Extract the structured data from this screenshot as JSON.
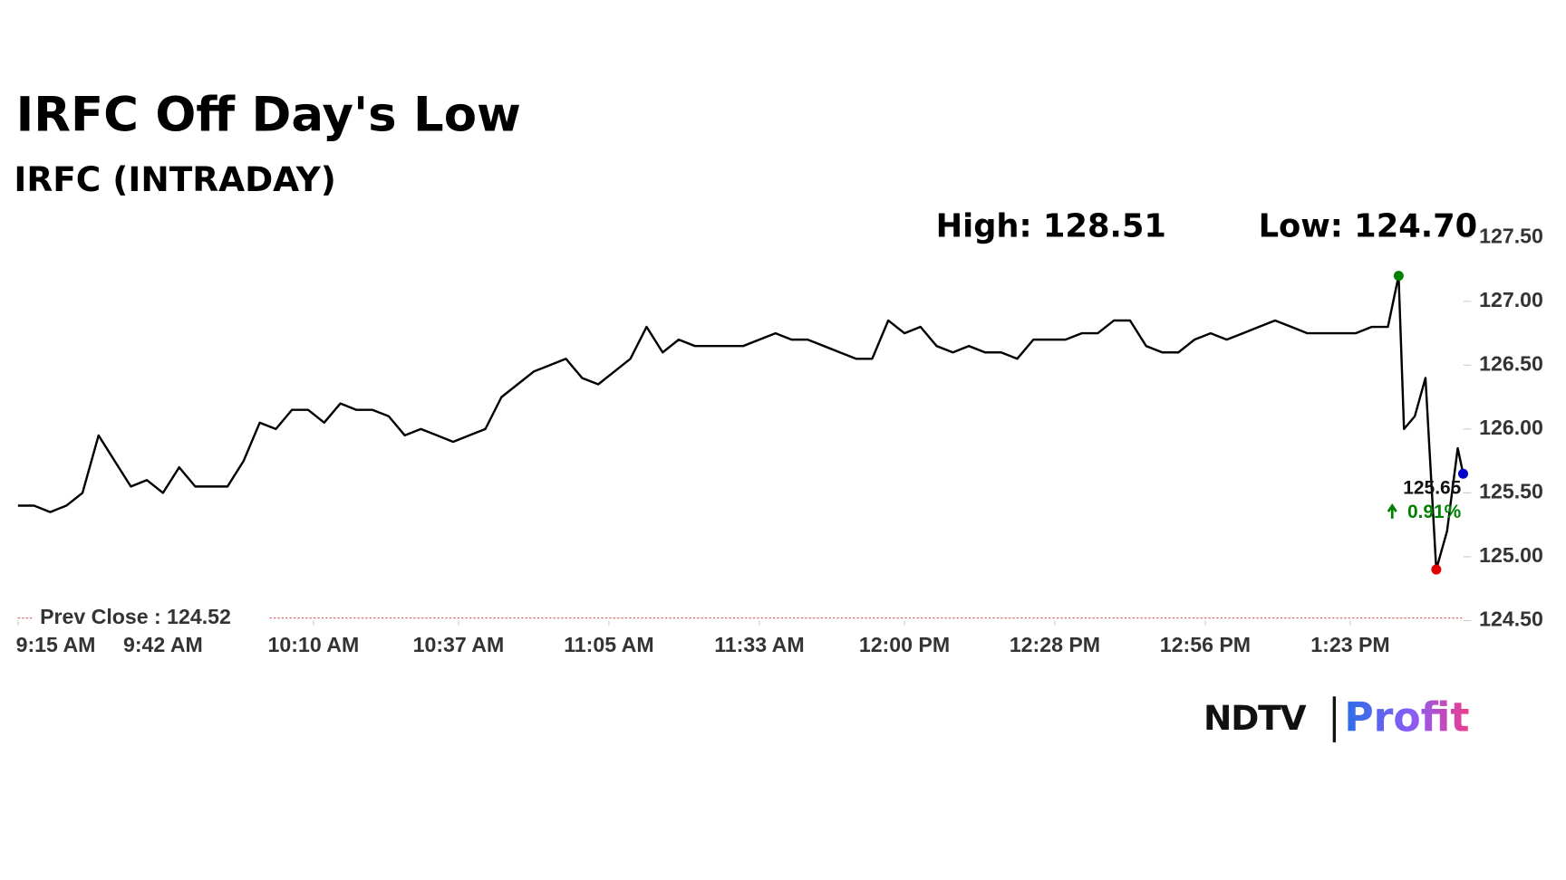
{
  "chart_data": {
    "type": "line",
    "title": "IRFC Off Day's Low",
    "subtitle": "IRFC (INTRADAY)",
    "annotations": {
      "high": "High: 128.51",
      "low": "Low: 124.70"
    },
    "prev_close": 124.52,
    "prev_close_label": "Prev Close : 124.52",
    "last_value": 125.65,
    "change_label": "0.91%",
    "x": [
      0,
      3,
      6,
      9,
      12,
      15,
      18,
      21,
      24,
      27,
      30,
      33,
      36,
      39,
      42,
      45,
      48,
      51,
      54,
      57,
      60,
      63,
      66,
      69,
      72,
      75,
      78,
      81,
      84,
      87,
      90,
      93,
      96,
      99,
      102,
      105,
      108,
      111,
      114,
      117,
      120,
      123,
      126,
      129,
      132,
      135,
      138,
      141,
      144,
      147,
      150,
      153,
      156,
      159,
      162,
      165,
      168,
      171,
      174,
      177,
      180,
      183,
      186,
      189,
      192,
      195,
      198,
      201,
      204,
      207,
      210,
      213,
      216,
      219,
      222,
      225,
      228,
      231,
      234,
      237,
      240,
      243,
      246,
      249,
      252,
      255,
      257,
      258,
      260,
      262,
      264,
      266,
      268,
      269
    ],
    "series": [
      {
        "color": "#000000",
        "values": [
          125.4,
          125.4,
          125.35,
          125.4,
          125.5,
          125.95,
          125.75,
          125.55,
          125.6,
          125.5,
          125.7,
          125.55,
          125.55,
          125.55,
          125.75,
          126.05,
          126.0,
          126.15,
          126.15,
          126.05,
          126.2,
          126.15,
          126.15,
          126.1,
          125.95,
          126.0,
          125.95,
          125.9,
          125.95,
          126.0,
          126.25,
          126.35,
          126.45,
          126.5,
          126.55,
          126.4,
          126.35,
          126.45,
          126.55,
          126.8,
          126.6,
          126.7,
          126.65,
          126.65,
          126.65,
          126.65,
          126.7,
          126.75,
          126.7,
          126.7,
          126.65,
          126.6,
          126.55,
          126.55,
          126.85,
          126.75,
          126.8,
          126.65,
          126.6,
          126.65,
          126.6,
          126.6,
          126.55,
          126.7,
          126.7,
          126.7,
          126.75,
          126.75,
          126.85,
          126.85,
          126.65,
          126.6,
          126.6,
          126.7,
          126.75,
          126.7,
          126.75,
          126.8,
          126.85,
          126.8,
          126.75,
          126.75,
          126.75,
          126.75,
          126.8,
          126.8,
          127.2,
          126.0,
          126.1,
          126.4,
          124.9,
          125.2,
          125.85,
          125.65
        ]
      }
    ],
    "xlim": [
      0,
      269
    ],
    "xticks": [
      {
        "value": 0,
        "label": "9:15 AM"
      },
      {
        "value": 27,
        "label": "9:42 AM"
      },
      {
        "value": 55,
        "label": "10:10 AM"
      },
      {
        "value": 82,
        "label": "10:37 AM"
      },
      {
        "value": 110,
        "label": "11:05 AM"
      },
      {
        "value": 138,
        "label": "11:33 AM"
      },
      {
        "value": 165,
        "label": "12:00 PM"
      },
      {
        "value": 193,
        "label": "12:28 PM"
      },
      {
        "value": 221,
        "label": "12:56 PM"
      },
      {
        "value": 248,
        "label": "1:23 PM"
      }
    ],
    "ylim": [
      124.5,
      127.5
    ],
    "yticks": [
      {
        "value": 124.5,
        "label": "124.50"
      },
      {
        "value": 125,
        "label": "125.00"
      },
      {
        "value": 125.5,
        "label": "125.50"
      },
      {
        "value": 126,
        "label": "126.00"
      },
      {
        "value": 126.5,
        "label": "126.50"
      },
      {
        "value": 127,
        "label": "127.00"
      },
      {
        "value": 127.5,
        "label": "127.50"
      }
    ],
    "high_color": "#008000",
    "low_color": "#e00000",
    "last_color": "#0000cc",
    "prev_close_color": "#e06060"
  },
  "brand": {
    "name": "NDTV",
    "product": "Profit"
  }
}
